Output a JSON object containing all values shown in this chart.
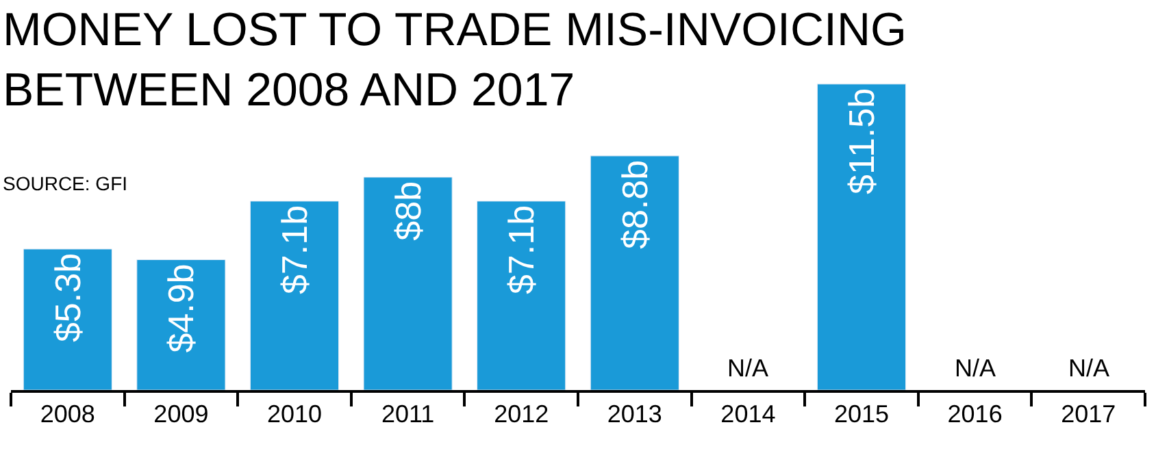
{
  "chart_data": {
    "type": "bar",
    "title": "MONEY LOST TO TRADE MIS-INVOICING\nBETWEEN 2008 AND 2017",
    "annotations": [
      "SOURCE: GFI"
    ],
    "categories": [
      "2008",
      "2009",
      "2010",
      "2011",
      "2012",
      "2013",
      "2014",
      "2015",
      "2016",
      "2017"
    ],
    "values": [
      5.3,
      4.9,
      7.1,
      8,
      7.1,
      8.8,
      null,
      11.5,
      null,
      null
    ],
    "value_labels": [
      "$5.3b",
      "$4.9b",
      "$7.1b",
      "$8b",
      "$7.1b",
      "$8.8b",
      "N/A",
      "$11.5b",
      "N/A",
      "N/A"
    ],
    "color": "#1a9ad8"
  }
}
